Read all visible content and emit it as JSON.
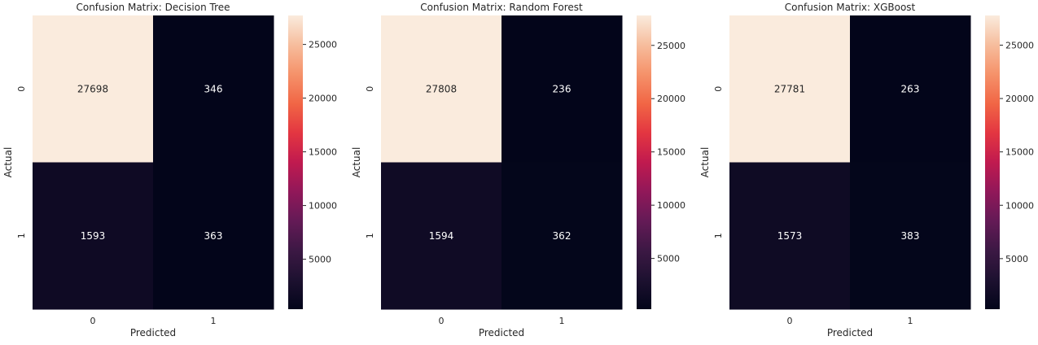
{
  "chart_data": [
    {
      "type": "heatmap",
      "title": "Confusion Matrix: Decision Tree",
      "xlabel": "Predicted",
      "ylabel": "Actual",
      "x_categories": [
        "0",
        "1"
      ],
      "y_categories": [
        "0",
        "1"
      ],
      "values": [
        [
          27698,
          346
        ],
        [
          1593,
          363
        ]
      ],
      "colorbar": {
        "min": 346,
        "max": 27698,
        "ticks": [
          5000,
          10000,
          15000,
          20000,
          25000
        ]
      }
    },
    {
      "type": "heatmap",
      "title": "Confusion Matrix: Random Forest",
      "xlabel": "Predicted",
      "ylabel": "Actual",
      "x_categories": [
        "0",
        "1"
      ],
      "y_categories": [
        "0",
        "1"
      ],
      "values": [
        [
          27808,
          236
        ],
        [
          1594,
          362
        ]
      ],
      "colorbar": {
        "min": 236,
        "max": 27808,
        "ticks": [
          5000,
          10000,
          15000,
          20000,
          25000
        ]
      }
    },
    {
      "type": "heatmap",
      "title": "Confusion Matrix: XGBoost",
      "xlabel": "Predicted",
      "ylabel": "Actual",
      "x_categories": [
        "0",
        "1"
      ],
      "y_categories": [
        "0",
        "1"
      ],
      "values": [
        [
          27781,
          263
        ],
        [
          1573,
          383
        ]
      ],
      "colorbar": {
        "min": 263,
        "max": 27781,
        "ticks": [
          5000,
          10000,
          15000,
          20000,
          25000
        ]
      }
    }
  ],
  "colormap": "rocket"
}
